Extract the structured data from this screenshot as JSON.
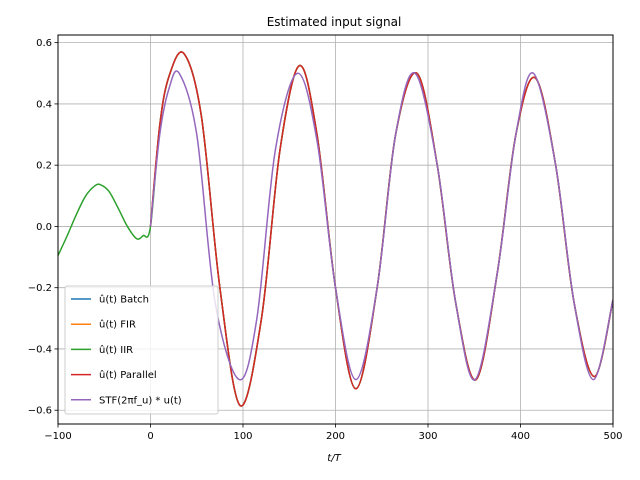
{
  "chart_data": {
    "type": "line",
    "title": "Estimated input signal",
    "xlabel": "t/T",
    "ylabel": "",
    "xlim": [
      -100,
      500
    ],
    "ylim": [
      -0.645,
      0.625
    ],
    "xticks": [
      -100,
      0,
      100,
      200,
      300,
      400,
      500
    ],
    "xtick_labels": [
      "−100",
      "0",
      "100",
      "200",
      "300",
      "400",
      "500"
    ],
    "yticks": [
      -0.6,
      -0.4,
      -0.2,
      0.0,
      0.2,
      0.4,
      0.6
    ],
    "ytick_labels": [
      "−0.6",
      "−0.4",
      "−0.2",
      "0.0",
      "0.2",
      "0.4",
      "0.6"
    ],
    "grid": true,
    "legend_position": "lower-left",
    "series": [
      {
        "name": "û(t) Batch",
        "color": "#1f77b4",
        "x": [
          0,
          10,
          20,
          36,
          55,
          75,
          97,
          120,
          140,
          161,
          180,
          200,
          222,
          245,
          265,
          288,
          310,
          330,
          352,
          375,
          395,
          416,
          438,
          458,
          480,
          500
        ],
        "y": [
          0.0,
          0.33,
          0.49,
          0.565,
          0.36,
          -0.2,
          -0.585,
          -0.3,
          0.25,
          0.525,
          0.3,
          -0.2,
          -0.53,
          -0.2,
          0.3,
          0.5,
          0.2,
          -0.25,
          -0.5,
          -0.15,
          0.3,
          0.485,
          0.2,
          -0.25,
          -0.49,
          -0.24
        ]
      },
      {
        "name": "û(t) FIR",
        "color": "#ff7f0e",
        "x": [
          0,
          10,
          20,
          36,
          55,
          75,
          97,
          120,
          140,
          161,
          180,
          200,
          222,
          245,
          265,
          288,
          310,
          330,
          352,
          375,
          395,
          416,
          438,
          458,
          480,
          500
        ],
        "y": [
          0.0,
          0.33,
          0.49,
          0.565,
          0.36,
          -0.2,
          -0.585,
          -0.3,
          0.25,
          0.525,
          0.3,
          -0.2,
          -0.53,
          -0.2,
          0.3,
          0.5,
          0.2,
          -0.25,
          -0.5,
          -0.15,
          0.3,
          0.485,
          0.2,
          -0.25,
          -0.49,
          -0.24
        ]
      },
      {
        "name": "û(t) IIR",
        "color": "#2ca02c",
        "x": [
          -100,
          -90,
          -80,
          -70,
          -60,
          -54,
          -45,
          -35,
          -25,
          -15,
          -8,
          0,
          10,
          20,
          36,
          55,
          75,
          97,
          120,
          140,
          161,
          180,
          200,
          222,
          245,
          265,
          288,
          310,
          330,
          352,
          375,
          395,
          416,
          438,
          458,
          480,
          500
        ],
        "y": [
          -0.095,
          -0.03,
          0.04,
          0.1,
          0.133,
          0.136,
          0.115,
          0.06,
          0.0,
          -0.04,
          -0.03,
          0.0,
          0.33,
          0.49,
          0.565,
          0.36,
          -0.2,
          -0.585,
          -0.3,
          0.25,
          0.525,
          0.3,
          -0.2,
          -0.53,
          -0.2,
          0.3,
          0.5,
          0.2,
          -0.25,
          -0.5,
          -0.15,
          0.3,
          0.485,
          0.2,
          -0.25,
          -0.49,
          -0.24
        ]
      },
      {
        "name": "û(t) Parallel",
        "color": "#d62728",
        "x": [
          0,
          10,
          20,
          36,
          55,
          75,
          97,
          120,
          140,
          161,
          180,
          200,
          222,
          245,
          265,
          288,
          310,
          330,
          352,
          375,
          395,
          416,
          438,
          458,
          480,
          500
        ],
        "y": [
          0.0,
          0.33,
          0.49,
          0.565,
          0.36,
          -0.2,
          -0.585,
          -0.3,
          0.25,
          0.525,
          0.3,
          -0.2,
          -0.53,
          -0.2,
          0.3,
          0.5,
          0.2,
          -0.25,
          -0.5,
          -0.15,
          0.3,
          0.485,
          0.2,
          -0.25,
          -0.49,
          -0.24
        ]
      },
      {
        "name": "STF(2πf_u) * u(t)",
        "color": "#9467bd",
        "x": [
          0,
          10,
          20,
          31,
          50,
          70,
          96,
          115,
          135,
          159,
          180,
          200,
          222,
          245,
          265,
          286,
          310,
          330,
          351,
          375,
          395,
          414,
          438,
          458,
          479,
          500
        ],
        "y": [
          0.0,
          0.3,
          0.45,
          0.5,
          0.3,
          -0.25,
          -0.5,
          -0.3,
          0.25,
          0.5,
          0.28,
          -0.2,
          -0.5,
          -0.2,
          0.3,
          0.5,
          0.2,
          -0.25,
          -0.5,
          -0.15,
          0.3,
          0.5,
          0.2,
          -0.25,
          -0.5,
          -0.24
        ]
      }
    ]
  }
}
